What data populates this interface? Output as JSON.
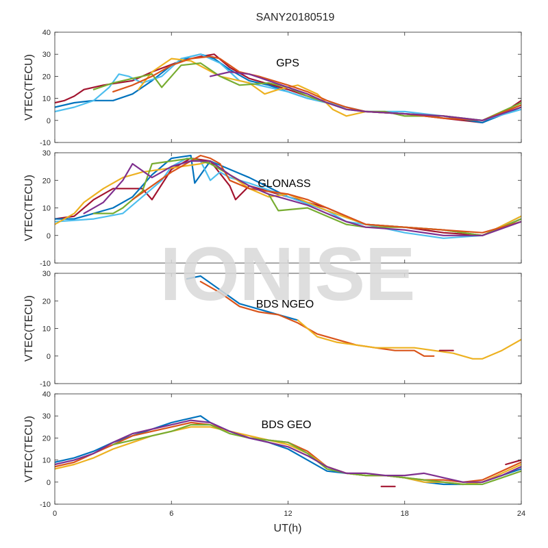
{
  "chart_data": [
    {
      "type": "line",
      "annotation": "GPS",
      "ylabel": "VTEC(TECU)",
      "xlim": [
        0,
        24
      ],
      "ylim": [
        -10,
        40
      ],
      "yticks": [
        -10,
        0,
        10,
        20,
        30,
        40
      ],
      "series": [
        {
          "color": "#a2142f",
          "x": [
            0,
            0.5,
            1,
            1.5,
            2.5,
            4,
            5,
            6.5,
            7.5,
            8.2,
            9,
            10,
            12,
            14,
            16,
            18,
            20,
            21,
            22,
            23,
            24
          ],
          "y": [
            8,
            9,
            11,
            14,
            16,
            18,
            22,
            27,
            29,
            30,
            24,
            19,
            14,
            8,
            4,
            3,
            1,
            0,
            -1,
            3,
            9
          ]
        },
        {
          "color": "#0072bd",
          "x": [
            0,
            1,
            2,
            3,
            4,
            5,
            6,
            7,
            7.5,
            8.2,
            9,
            10,
            11,
            12,
            13,
            14,
            15,
            16,
            18,
            20,
            22,
            24
          ],
          "y": [
            6,
            8,
            9,
            9,
            12,
            18,
            25,
            29,
            30,
            28,
            23,
            18,
            16,
            13,
            10,
            8,
            6,
            4,
            3,
            2,
            -1,
            6
          ]
        },
        {
          "color": "#4dbeee",
          "x": [
            0,
            1,
            2,
            2.8,
            3.3,
            3.8,
            4.5,
            5.5,
            6.5,
            7.5,
            8.5,
            9.5,
            10.5,
            12,
            13,
            14,
            15,
            16,
            18,
            20,
            22,
            24
          ],
          "y": [
            4,
            6,
            9,
            15,
            21,
            20,
            17,
            20,
            28,
            30,
            26,
            18,
            16,
            13,
            10,
            8,
            6,
            4,
            4,
            2,
            0,
            5
          ]
        },
        {
          "color": "#edb120",
          "x": [
            4.3,
            5,
            6,
            7,
            8.5,
            10,
            10.8,
            11.5,
            12.5,
            13.5,
            14.3,
            15,
            16,
            18,
            20,
            22,
            24
          ],
          "y": [
            14,
            22,
            28,
            27,
            20,
            17,
            12,
            14,
            16,
            12,
            5,
            2,
            4,
            3,
            2,
            0,
            7
          ]
        },
        {
          "color": "#77ac30",
          "x": [
            2,
            3,
            4,
            5,
            5.5,
            6.5,
            7.5,
            8.5,
            9.5,
            11,
            12,
            13,
            14,
            15,
            16,
            17,
            18,
            20,
            22,
            24
          ],
          "y": [
            14,
            17,
            19,
            21,
            15,
            25,
            26,
            20,
            16,
            17,
            15,
            11,
            8,
            5,
            4,
            4,
            2,
            2,
            0,
            8
          ]
        },
        {
          "color": "#d95319",
          "x": [
            3,
            4,
            5,
            6,
            7,
            8,
            8.5,
            9,
            9.5,
            10.5,
            12,
            13,
            14,
            15,
            16,
            18,
            20,
            22,
            24
          ],
          "y": [
            13,
            16,
            20,
            25,
            28,
            29,
            28,
            25,
            22,
            20,
            16,
            13,
            9,
            6,
            4,
            3,
            1,
            0,
            7
          ]
        },
        {
          "color": "#7e2f8e",
          "x": [
            8,
            9,
            10,
            11,
            12,
            13,
            14,
            15,
            16,
            18,
            20,
            22,
            24
          ],
          "y": [
            20,
            22,
            21,
            18,
            15,
            12,
            8,
            5,
            4,
            3,
            2,
            0,
            6
          ]
        }
      ]
    },
    {
      "type": "line",
      "annotation": "GLONASS",
      "ylabel": "VTEC(TECU)",
      "xlim": [
        0,
        24
      ],
      "ylim": [
        -10,
        30
      ],
      "yticks": [
        -10,
        0,
        10,
        20,
        30
      ],
      "series": [
        {
          "color": "#a2142f",
          "x": [
            0,
            1,
            2,
            3,
            4,
            4.5,
            5,
            6,
            7,
            8,
            9,
            9.3,
            10,
            12,
            14,
            16,
            18,
            20,
            22,
            24
          ],
          "y": [
            6,
            7,
            13,
            17,
            17,
            17,
            13,
            24,
            28,
            27,
            18,
            13,
            18,
            14,
            10,
            4,
            3,
            1,
            0,
            6
          ]
        },
        {
          "color": "#0072bd",
          "x": [
            0,
            1,
            2,
            3,
            4,
            5,
            6,
            7,
            7.2,
            8,
            9,
            10,
            12,
            14,
            16,
            18,
            20,
            22,
            24
          ],
          "y": [
            6,
            6,
            8,
            10,
            14,
            22,
            28,
            29,
            19,
            27,
            24,
            21,
            14,
            9,
            4,
            3,
            2,
            0,
            6
          ]
        },
        {
          "color": "#4dbeee",
          "x": [
            0,
            2,
            3.5,
            4.5,
            5,
            5.5,
            6,
            6.8,
            7.5,
            8,
            8.5,
            9,
            10,
            12,
            14,
            15,
            16,
            18,
            20,
            22,
            24
          ],
          "y": [
            5,
            6,
            8,
            14,
            17,
            20,
            25,
            28,
            27,
            20,
            23,
            21,
            19,
            14,
            9,
            5,
            4,
            1,
            -1,
            0,
            7
          ]
        },
        {
          "color": "#edb120",
          "x": [
            0,
            1,
            1.5,
            2.5,
            3.5,
            4.5,
            5.5,
            6.5,
            7.5,
            8,
            9,
            10,
            11,
            12,
            13,
            14,
            16,
            18,
            20,
            22,
            24
          ],
          "y": [
            4,
            8,
            12,
            17,
            21,
            23,
            24,
            25,
            26,
            27,
            22,
            17,
            14,
            15,
            12,
            9,
            4,
            3,
            2,
            0,
            7
          ]
        },
        {
          "color": "#77ac30",
          "x": [
            2,
            3,
            3.5,
            4.5,
            5,
            6,
            7,
            8,
            9,
            10,
            11,
            11.5,
            13,
            14,
            15,
            16,
            18,
            20,
            22,
            24
          ],
          "y": [
            8,
            8,
            10,
            16,
            26,
            27,
            28,
            26,
            22,
            18,
            15,
            9,
            10,
            7,
            4,
            3,
            3,
            2,
            0,
            6
          ]
        },
        {
          "color": "#d95319",
          "x": [
            4,
            5,
            6,
            7,
            7.5,
            8,
            8.5,
            9,
            10,
            11,
            12,
            13,
            14,
            15,
            16,
            18,
            20,
            22,
            24
          ],
          "y": [
            13,
            18,
            23,
            27,
            29,
            28,
            26,
            20,
            17,
            16,
            15,
            13,
            10,
            7,
            4,
            3,
            2,
            1,
            5
          ]
        },
        {
          "color": "#7e2f8e",
          "x": [
            1.5,
            2.5,
            3.5,
            4,
            5,
            6,
            7,
            8,
            9,
            10,
            11,
            12,
            13,
            14,
            15,
            16,
            18,
            20,
            22,
            24
          ],
          "y": [
            8,
            12,
            20,
            26,
            21,
            25,
            27,
            27,
            22,
            18,
            15,
            13,
            11,
            8,
            5,
            3,
            2,
            0,
            0,
            5
          ]
        }
      ]
    },
    {
      "type": "line",
      "annotation": "BDS NGEO",
      "ylabel": "VTEC(TECU)",
      "xlim": [
        0,
        24
      ],
      "ylim": [
        -10,
        30
      ],
      "yticks": [
        -10,
        0,
        10,
        20,
        30
      ],
      "series": [
        {
          "color": "#0072bd",
          "x": [
            6.8,
            7.5,
            8.5,
            9.5,
            10.5,
            11.5,
            12.5
          ],
          "y": [
            28,
            29,
            24,
            19,
            17,
            15,
            13
          ]
        },
        {
          "color": "#d95319",
          "x": [
            7.5,
            8.5,
            9.5,
            10.5,
            11.5,
            12.5,
            13.5,
            14.5,
            15.5,
            16.5,
            17.5,
            18.5,
            19,
            19.5
          ],
          "y": [
            27,
            23,
            18,
            16,
            15,
            12,
            8,
            6,
            4,
            3,
            2,
            2,
            0,
            0
          ]
        },
        {
          "color": "#edb120",
          "x": [
            12.5,
            13.5,
            14.5,
            15.5,
            16.5,
            17.5,
            18.5,
            19.5,
            20.5,
            21.5,
            22,
            23,
            24
          ],
          "y": [
            13,
            7,
            5,
            4,
            3,
            3,
            3,
            2,
            1,
            -1,
            -1,
            2,
            6
          ]
        },
        {
          "color": "#a2142f",
          "x": [
            19.8,
            20.5
          ],
          "y": [
            2,
            2
          ]
        }
      ]
    },
    {
      "type": "line",
      "annotation": "BDS GEO",
      "ylabel": "VTEC(TECU)",
      "xlabel": "UT(h)",
      "xlim": [
        0,
        24
      ],
      "ylim": [
        -10,
        40
      ],
      "yticks": [
        -10,
        0,
        10,
        20,
        30,
        40
      ],
      "xticks": [
        0,
        6,
        12,
        18,
        24
      ],
      "series": [
        {
          "color": "#0072bd",
          "x": [
            0,
            1,
            2,
            3,
            4,
            5,
            6,
            7,
            7.5,
            8,
            9,
            10,
            11,
            12,
            13,
            14,
            15,
            16,
            17,
            18,
            19,
            20,
            21,
            22,
            23,
            24
          ],
          "y": [
            9,
            11,
            14,
            18,
            21,
            24,
            27,
            29,
            30,
            27,
            23,
            20,
            18,
            15,
            10,
            5,
            4,
            3,
            3,
            2,
            0,
            -1,
            -1,
            0,
            3,
            6
          ]
        },
        {
          "color": "#d95319",
          "x": [
            0,
            1,
            2,
            3,
            4,
            5,
            6,
            7,
            8,
            9,
            10,
            11,
            12,
            13,
            14,
            15,
            16,
            17,
            18,
            19,
            20,
            21,
            22,
            23,
            24
          ],
          "y": [
            7,
            9,
            13,
            17,
            21,
            23,
            25,
            27,
            26,
            23,
            21,
            19,
            18,
            14,
            7,
            4,
            3,
            3,
            2,
            1,
            1,
            0,
            1,
            5,
            9
          ]
        },
        {
          "color": "#edb120",
          "x": [
            0,
            1,
            2,
            3,
            4,
            5,
            6,
            7,
            8,
            9,
            10,
            11,
            12,
            13,
            14,
            15,
            16,
            17,
            18,
            19,
            20,
            21,
            22,
            23,
            24
          ],
          "y": [
            6,
            8,
            11,
            15,
            18,
            21,
            23,
            25,
            25,
            23,
            21,
            19,
            17,
            13,
            7,
            4,
            3,
            3,
            2,
            0,
            0,
            -1,
            0,
            4,
            8
          ]
        },
        {
          "color": "#77ac30",
          "x": [
            3,
            4,
            5,
            6,
            7,
            8,
            9,
            10,
            11,
            12,
            13,
            14,
            15,
            16,
            17,
            18,
            19,
            20,
            21,
            22,
            23,
            24
          ],
          "y": [
            17,
            19,
            21,
            23,
            26,
            26,
            22,
            20,
            19,
            18,
            13,
            6,
            4,
            3,
            3,
            2,
            1,
            0,
            -1,
            -1,
            2,
            5
          ]
        },
        {
          "color": "#7e2f8e",
          "x": [
            0,
            1,
            2,
            3,
            4,
            5,
            6,
            7,
            8,
            9,
            10,
            11,
            12,
            13,
            14,
            15,
            16,
            17,
            18,
            19,
            20,
            21,
            22,
            23,
            24
          ],
          "y": [
            8,
            10,
            13,
            18,
            22,
            24,
            26,
            28,
            27,
            23,
            20,
            18,
            16,
            12,
            7,
            4,
            4,
            3,
            3,
            4,
            2,
            0,
            0,
            3,
            7
          ]
        },
        {
          "color": "#a2142f",
          "x": [
            16.8,
            17.5
          ],
          "y": [
            -2,
            -2
          ]
        },
        {
          "color": "#a2142f",
          "x": [
            23.2,
            24
          ],
          "y": [
            8,
            10
          ]
        }
      ]
    }
  ],
  "figure": {
    "title": "SANY20180519",
    "xlabel": "UT(h)",
    "watermark": "IONISE"
  }
}
